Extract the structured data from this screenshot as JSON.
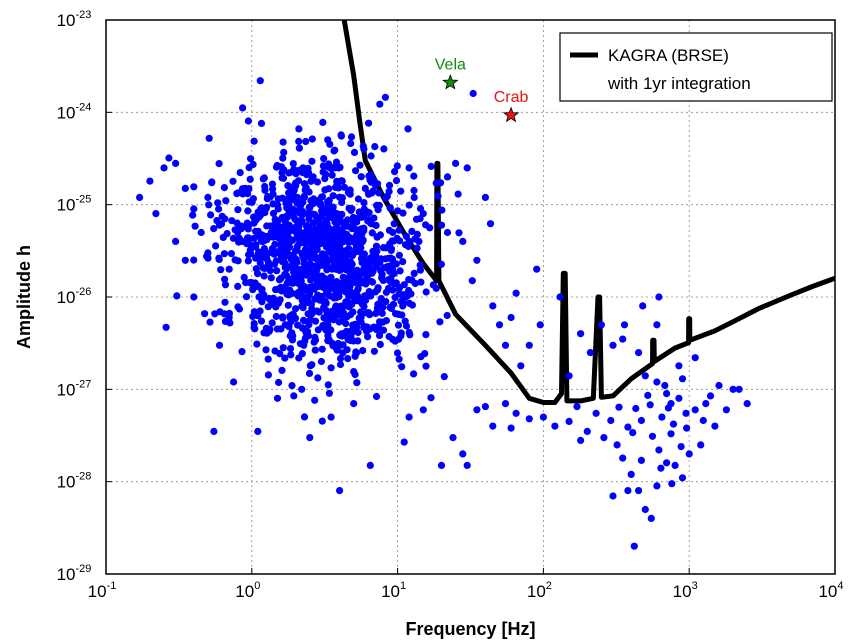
{
  "chart_data": {
    "type": "scatter",
    "xlabel": "Frequency [Hz]",
    "ylabel": "Amplitude h",
    "xscale": "log",
    "yscale": "log",
    "xlim": [
      0.1,
      10000
    ],
    "ylim": [
      1e-29,
      1e-23
    ],
    "grid": true,
    "x_ticks": [
      {
        "base": "10",
        "exp": "-1",
        "value": 0.1
      },
      {
        "base": "10",
        "exp": "0",
        "value": 1
      },
      {
        "base": "10",
        "exp": "1",
        "value": 10
      },
      {
        "base": "10",
        "exp": "2",
        "value": 100
      },
      {
        "base": "10",
        "exp": "3",
        "value": 1000
      },
      {
        "base": "10",
        "exp": "4",
        "value": 10000
      }
    ],
    "y_ticks": [
      {
        "base": "10",
        "exp": "-29",
        "value": 1e-29
      },
      {
        "base": "10",
        "exp": "-28",
        "value": 1e-28
      },
      {
        "base": "10",
        "exp": "-27",
        "value": 1e-27
      },
      {
        "base": "10",
        "exp": "-26",
        "value": 1e-26
      },
      {
        "base": "10",
        "exp": "-25",
        "value": 1e-25
      },
      {
        "base": "10",
        "exp": "-24",
        "value": 1e-24
      },
      {
        "base": "10",
        "exp": "-23",
        "value": 1e-23
      }
    ],
    "legend": {
      "position": "top-right",
      "entries": [
        {
          "line1": "KAGRA (BRSE)",
          "line2": "with 1yr integration",
          "color": "#000000"
        }
      ]
    },
    "series": [
      {
        "kind": "line",
        "color": "#000000",
        "points": [
          [
            4.3,
            1e-23
          ],
          [
            5,
            2.5e-24
          ],
          [
            5.5,
            8e-25
          ],
          [
            6,
            3e-25
          ],
          [
            8,
            1.2e-25
          ],
          [
            11,
            5e-26
          ],
          [
            15,
            2.3e-26
          ],
          [
            18.5,
            1.5e-26
          ],
          [
            18.6,
            2.8e-25
          ],
          [
            18.9,
            2.8e-25
          ],
          [
            19.2,
            1.5e-26
          ],
          [
            25,
            6.5e-27
          ],
          [
            40,
            3e-27
          ],
          [
            60,
            1.5e-27
          ],
          [
            80,
            8e-28
          ],
          [
            100,
            7.2e-28
          ],
          [
            120,
            7.2e-28
          ],
          [
            133,
            9e-28
          ],
          [
            137,
            1.8e-26
          ],
          [
            141,
            1.8e-26
          ],
          [
            145,
            7.5e-28
          ],
          [
            180,
            7.5e-28
          ],
          [
            220,
            8e-28
          ],
          [
            237,
            1e-26
          ],
          [
            243,
            1e-26
          ],
          [
            250,
            8.2e-28
          ],
          [
            300,
            8.5e-28
          ],
          [
            400,
            1.3e-27
          ],
          [
            560,
            1.9e-27
          ],
          [
            562,
            3.4e-27
          ],
          [
            574,
            3.4e-27
          ],
          [
            576,
            2e-27
          ],
          [
            800,
            2.8e-27
          ],
          [
            990,
            3.2e-27
          ],
          [
            992,
            5.8e-27
          ],
          [
            1008,
            5.8e-27
          ],
          [
            1010,
            3.4e-27
          ],
          [
            1500,
            4.3e-27
          ],
          [
            2000,
            5.4e-27
          ],
          [
            3000,
            7.5e-27
          ],
          [
            5000,
            1.05e-26
          ],
          [
            7000,
            1.3e-26
          ],
          [
            10000,
            1.6e-26
          ]
        ]
      },
      {
        "kind": "markers",
        "color": "#0000ff",
        "generated_cluster": {
          "count": 1300,
          "seed": 17
        },
        "points": [
          [
            0.17,
            1.2e-25
          ],
          [
            0.2,
            1.8e-25
          ],
          [
            0.25,
            2.5e-25
          ],
          [
            0.27,
            3.2e-25
          ],
          [
            0.3,
            2.8e-25
          ],
          [
            0.35,
            1.5e-25
          ],
          [
            0.22,
            8e-26
          ],
          [
            0.4,
            9e-26
          ],
          [
            0.5,
            1.2e-25
          ],
          [
            0.45,
            5e-26
          ],
          [
            0.3,
            4e-26
          ],
          [
            0.6,
            6e-26
          ],
          [
            0.7,
            2e-26
          ],
          [
            0.8,
            5e-26
          ],
          [
            0.35,
            2.5e-26
          ],
          [
            0.5,
            3e-26
          ],
          [
            0.9,
            1.5e-25
          ],
          [
            1.2,
            1.9e-25
          ],
          [
            1.4,
            1.3e-25
          ],
          [
            2,
            1.6e-25
          ],
          [
            3,
            1.2e-25
          ],
          [
            6,
            1.5e-25
          ],
          [
            10.5,
            1.4e-25
          ],
          [
            13,
            1.2e-25
          ],
          [
            17,
            2.6e-25
          ],
          [
            22,
            2e-25
          ],
          [
            25,
            2.8e-25
          ],
          [
            26,
            1.3e-25
          ],
          [
            30,
            2.5e-25
          ],
          [
            33,
            1.6e-24
          ],
          [
            12,
            2.5e-25
          ],
          [
            15,
            8e-26
          ],
          [
            22,
            5e-26
          ],
          [
            28,
            4e-26
          ],
          [
            35,
            2.5e-26
          ],
          [
            14,
            4e-26
          ],
          [
            40,
            1.2e-25
          ],
          [
            20,
            6e-26
          ],
          [
            13,
            1.8e-26
          ],
          [
            50,
            5e-27
          ],
          [
            45,
            8e-27
          ],
          [
            65,
            1.1e-26
          ],
          [
            60,
            6e-27
          ],
          [
            80,
            3e-27
          ],
          [
            70,
            1.8e-27
          ],
          [
            55,
            3e-27
          ],
          [
            90,
            2e-26
          ],
          [
            95,
            5e-27
          ],
          [
            1.7,
            5e-27
          ],
          [
            3,
            2e-27
          ],
          [
            0.7,
            6e-27
          ],
          [
            0.6,
            3e-27
          ],
          [
            0.75,
            1.2e-27
          ],
          [
            0.4,
            1e-26
          ],
          [
            1.5,
            8e-28
          ],
          [
            2.2,
            1e-27
          ],
          [
            4,
            8e-29
          ],
          [
            0.55,
            3.5e-28
          ],
          [
            1.1,
            3.5e-28
          ],
          [
            2.5,
            3e-28
          ],
          [
            3.5,
            5e-28
          ],
          [
            5,
            7e-28
          ],
          [
            6.5,
            1.5e-28
          ],
          [
            12,
            5e-28
          ],
          [
            15,
            6e-28
          ],
          [
            24,
            3e-28
          ],
          [
            28,
            2e-28
          ],
          [
            20,
            1.5e-28
          ],
          [
            30,
            1.5e-28
          ],
          [
            45,
            4e-28
          ],
          [
            60,
            3.8e-28
          ],
          [
            80,
            4.8e-28
          ],
          [
            35,
            6e-28
          ],
          [
            40,
            6.5e-28
          ],
          [
            55,
            7e-28
          ],
          [
            65,
            5.5e-28
          ],
          [
            100,
            5e-28
          ],
          [
            120,
            4e-28
          ],
          [
            150,
            4.5e-28
          ],
          [
            170,
            6.5e-28
          ],
          [
            200,
            3.5e-28
          ],
          [
            180,
            2.8e-28
          ],
          [
            230,
            5.5e-28
          ],
          [
            260,
            3e-28
          ],
          [
            320,
            2.5e-28
          ],
          [
            350,
            1.8e-28
          ],
          [
            400,
            1.2e-28
          ],
          [
            450,
            8e-29
          ],
          [
            300,
            7e-29
          ],
          [
            500,
            5e-29
          ],
          [
            550,
            4e-29
          ],
          [
            420,
            2e-29
          ],
          [
            380,
            8e-29
          ],
          [
            600,
            9e-29
          ],
          [
            700,
            1.6e-28
          ],
          [
            800,
            1.5e-28
          ],
          [
            900,
            1.1e-28
          ],
          [
            1000,
            2e-28
          ],
          [
            1200,
            2.5e-28
          ],
          [
            1500,
            4e-28
          ],
          [
            1800,
            6e-28
          ],
          [
            1100,
            6e-28
          ],
          [
            650,
            5e-28
          ],
          [
            750,
            7e-28
          ],
          [
            850,
            8e-28
          ],
          [
            950,
            5.5e-28
          ],
          [
            1300,
            7e-28
          ],
          [
            2000,
            1e-27
          ],
          [
            2500,
            7e-28
          ],
          [
            2200,
            1e-27
          ],
          [
            1600,
            1.1e-27
          ],
          [
            700,
            9e-28
          ],
          [
            600,
            1.2e-27
          ],
          [
            500,
            1.4e-27
          ],
          [
            450,
            2.5e-27
          ],
          [
            350,
            3.5e-27
          ],
          [
            600,
            5e-27
          ],
          [
            620,
            1e-26
          ],
          [
            480,
            8e-27
          ],
          [
            360,
            5e-27
          ],
          [
            300,
            3e-27
          ],
          [
            250,
            5e-27
          ],
          [
            150,
            1.4e-27
          ],
          [
            130,
            1e-26
          ],
          [
            180,
            4e-27
          ],
          [
            210,
            2.5e-27
          ],
          [
            850,
            1.8e-27
          ],
          [
            1100,
            2.2e-27
          ],
          [
            900,
            1.3e-27
          ],
          [
            750,
            3.3e-28
          ],
          [
            560,
            3.1e-28
          ],
          [
            470,
            4.6e-28
          ],
          [
            430,
            6.2e-28
          ],
          [
            520,
            8.6e-28
          ],
          [
            680,
            1.1e-27
          ],
          [
            780,
            4.2e-28
          ],
          [
            880,
            2.4e-28
          ],
          [
            620,
            2.2e-28
          ],
          [
            410,
            3.4e-28
          ],
          [
            540,
            6.8e-28
          ],
          [
            720,
            6.3e-28
          ],
          [
            960,
            3.8e-28
          ],
          [
            1250,
            4.6e-28
          ],
          [
            1400,
            8.5e-28
          ],
          [
            640,
            1.4e-28
          ],
          [
            470,
            1.7e-28
          ],
          [
            760,
            9.5e-29
          ],
          [
            380,
            3.9e-28
          ],
          [
            290,
            4.6e-28
          ],
          [
            330,
            6.4e-28
          ]
        ]
      }
    ],
    "annotations": [
      {
        "text": "Vela",
        "x": 23,
        "y": 2.1e-24,
        "color": "#118a11",
        "marker": "star"
      },
      {
        "text": "Crab",
        "x": 60,
        "y": 9.3e-25,
        "color": "#ee1111",
        "marker": "star"
      }
    ]
  }
}
